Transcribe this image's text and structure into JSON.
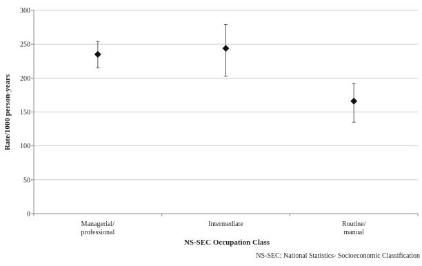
{
  "chart_data": {
    "type": "scatter",
    "title": "",
    "xlabel": "NS-SEC Occupation Class",
    "ylabel": "Rate/1000 person-years",
    "ylim": [
      0,
      300
    ],
    "yticks": [
      0,
      50,
      100,
      150,
      200,
      250,
      300
    ],
    "grid": true,
    "categories": [
      "Managerial/\nprofessional",
      "Intermediate",
      "Routine/\nmanual"
    ],
    "series": [
      {
        "values": [
          235,
          244,
          166
        ],
        "lower": [
          215,
          203,
          135
        ],
        "upper": [
          254,
          279,
          192
        ],
        "marker": "diamond",
        "color": "#111111"
      }
    ],
    "footnote": "NS-SEC: National Statistics- Socioeconomic Classification"
  }
}
